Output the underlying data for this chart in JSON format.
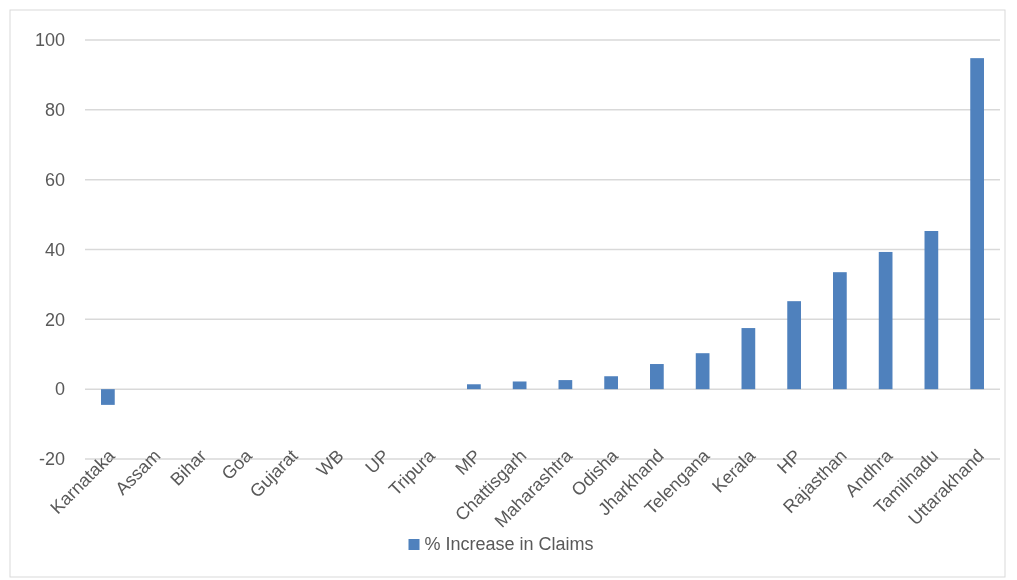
{
  "chart_data": {
    "type": "bar",
    "categories": [
      "Karnataka",
      "Assam",
      "Bihar",
      "Goa",
      "Gujarat",
      "WB",
      "UP",
      "Tripura",
      "MP",
      "Chattisgarh",
      "Maharashtra",
      "Odisha",
      "Jharkhand",
      "Telengana",
      "Kerala",
      "HP",
      "Rajasthan",
      "Andhra",
      "Tamilnadu",
      "Uttarakhand"
    ],
    "series": [
      {
        "name": "% Increase in Claims",
        "color": "#4f81bd",
        "values": [
          -4.5,
          0,
          0,
          0,
          0,
          0,
          0,
          0,
          1.4,
          2.2,
          2.6,
          3.7,
          7.2,
          10.3,
          17.5,
          25.2,
          33.5,
          39.3,
          45.3,
          94.8
        ]
      }
    ],
    "ylim": [
      -20,
      100
    ],
    "yticks": [
      -20,
      0,
      20,
      40,
      60,
      80,
      100
    ],
    "grid": "y",
    "legend": "bottom"
  }
}
